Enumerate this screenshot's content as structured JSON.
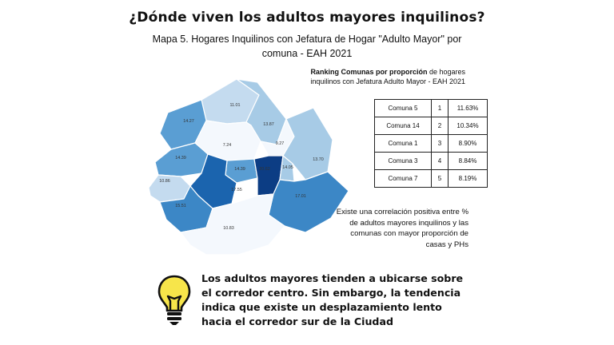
{
  "title": "¿Dónde viven los adultos mayores inquilinos?",
  "subtitle": "Mapa 5. Hogares Inquilinos con Jefatura de Hogar \"Adulto Mayor\" por comuna - EAH 2021",
  "ranking": {
    "caption_bold": "Ranking Comunas por proporción",
    "caption_rest": " de hogares inquilinos con Jefatura Adulto Mayor - EAH 2021",
    "rows": [
      {
        "comuna": "Comuna 5",
        "rank": "1",
        "value": "11.63%"
      },
      {
        "comuna": "Comuna 14",
        "rank": "2",
        "value": "10.34%"
      },
      {
        "comuna": "Comuna 1",
        "rank": "3",
        "value": "8.90%"
      },
      {
        "comuna": "Comuna 3",
        "rank": "4",
        "value": "8.84%"
      },
      {
        "comuna": "Comuna 7",
        "rank": "5",
        "value": "8.19%"
      }
    ]
  },
  "note": "Existe una correlación positiva entre % de adultos mayores inquilinos y las comunas con mayor proporción de casas y PHs",
  "conclusion": "Los adultos mayores tienden a ubicarse sobre el corredor centro. Sin embargo, la tendencia indica que existe un desplazamiento lento hacia el corredor sur de la Ciudad",
  "map_labels": {
    "l1": "11.01",
    "l2": "14.27",
    "l3": "13.87",
    "l4": "7.24",
    "l5": "9.27",
    "l6": "14.39",
    "l7": "13.70",
    "l8": "14.39",
    "l9": "20.62",
    "l10": "14.05",
    "l11": "10.86",
    "l12": "17.55",
    "l13": "17.01",
    "l14": "15.51",
    "l15": "10.83"
  },
  "colors": {
    "c_lightest": "#f4f8fd",
    "c_light": "#c4dbef",
    "c_light2": "#a7cbe6",
    "c_mid": "#5a9ed3",
    "c_mid2": "#3c87c6",
    "c_dark": "#1b64ae",
    "c_darkest": "#0c3d84",
    "bulb_yellow": "#f7e54a"
  },
  "icons": {
    "bulb": "light-bulb-icon"
  }
}
